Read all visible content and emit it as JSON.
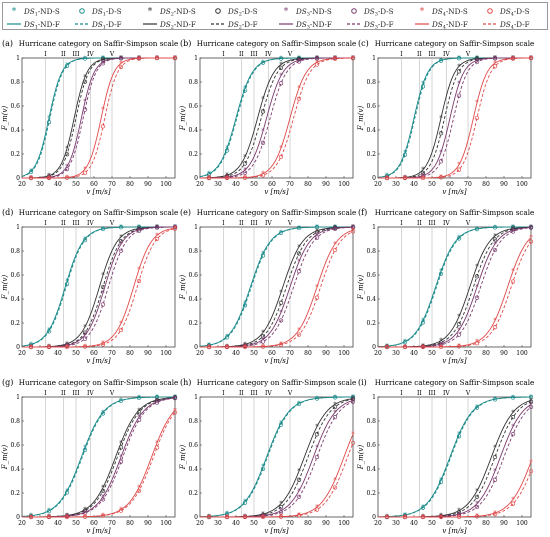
{
  "legend": {
    "rows": [
      [
        {
          "text": "DS1-ND-S",
          "sub": "1",
          "base": "DS",
          "rest": "-ND-S",
          "color": "#1a8a8a",
          "marker": "star",
          "style": "solid"
        },
        {
          "text": "DS1-D-S",
          "sub": "1",
          "base": "DS",
          "rest": "-D-S",
          "color": "#1a8a8a",
          "marker": "circle",
          "style": "dashed"
        },
        {
          "text": "DS2-ND-S",
          "sub": "2",
          "base": "DS",
          "rest": "-ND-S",
          "color": "#333333",
          "marker": "star",
          "style": "solid"
        },
        {
          "text": "DS2-D-S",
          "sub": "2",
          "base": "DS",
          "rest": "-D-S",
          "color": "#333333",
          "marker": "circle",
          "style": "dashed"
        },
        {
          "text": "DS3-ND-S",
          "sub": "3",
          "base": "DS",
          "rest": "-ND-S",
          "color": "#7a3b6e",
          "marker": "star",
          "style": "solid"
        },
        {
          "text": "DS3-D-S",
          "sub": "3",
          "base": "DS",
          "rest": "-D-S",
          "color": "#7a3b6e",
          "marker": "circle",
          "style": "dashed"
        },
        {
          "text": "DS4-ND-S",
          "sub": "4",
          "base": "DS",
          "rest": "-ND-S",
          "color": "#e04a4a",
          "marker": "star",
          "style": "solid"
        },
        {
          "text": "DS4-D-S",
          "sub": "4",
          "base": "DS",
          "rest": "-D-S",
          "color": "#e04a4a",
          "marker": "circle",
          "style": "dashed"
        }
      ],
      [
        {
          "text": "DS1-ND-F",
          "sub": "1",
          "base": "DS",
          "rest": "-ND-F",
          "color": "#1a8a8a",
          "marker": "line",
          "style": "solid"
        },
        {
          "text": "DS1-D-F",
          "sub": "1",
          "base": "DS",
          "rest": "-D-F",
          "color": "#1a8a8a",
          "marker": "line",
          "style": "dashed"
        },
        {
          "text": "DS2-ND-F",
          "sub": "2",
          "base": "DS",
          "rest": "-ND-F",
          "color": "#333333",
          "marker": "line",
          "style": "solid"
        },
        {
          "text": "DS2-D-F",
          "sub": "2",
          "base": "DS",
          "rest": "-D-F",
          "color": "#333333",
          "marker": "line",
          "style": "dashed"
        },
        {
          "text": "DS3-ND-F",
          "sub": "3",
          "base": "DS",
          "rest": "-ND-F",
          "color": "#7a3b6e",
          "marker": "line",
          "style": "solid"
        },
        {
          "text": "DS3-D-F",
          "sub": "3",
          "base": "DS",
          "rest": "-D-F",
          "color": "#7a3b6e",
          "marker": "line",
          "style": "dashed"
        },
        {
          "text": "DS4-ND-F",
          "sub": "4",
          "base": "DS",
          "rest": "-ND-F",
          "color": "#e04a4a",
          "marker": "line",
          "style": "solid"
        },
        {
          "text": "DS4-D-F",
          "sub": "4",
          "base": "DS",
          "rest": "-D-F",
          "color": "#e04a4a",
          "marker": "line",
          "style": "dashed"
        }
      ]
    ]
  },
  "chart_data": [
    {
      "panel": "(a)",
      "type": "line",
      "title": "Hurricane category on Saffir-Simpson scale",
      "xlabel": "v [m/s]",
      "ylabel": "F_m(v)",
      "xlim": [
        20,
        105
      ],
      "ylim": [
        0,
        1
      ],
      "xticks": [
        20,
        30,
        40,
        50,
        60,
        70,
        80,
        90,
        100
      ],
      "yticks": [
        0,
        0.2,
        0.4,
        0.6,
        0.8,
        1
      ],
      "category_lines": [
        {
          "label": "I",
          "v": 33
        },
        {
          "label": "II",
          "v": 43
        },
        {
          "label": "III",
          "v": 50
        },
        {
          "label": "IV",
          "v": 58
        },
        {
          "label": "V",
          "v": 70
        }
      ],
      "medians": {
        "DS1": [
          35,
          35.5
        ],
        "DS2": [
          49,
          50
        ],
        "DS3": [
          53,
          54
        ],
        "DS4": [
          64,
          66
        ]
      },
      "steepness": 0.28
    },
    {
      "panel": "(b)",
      "type": "line",
      "title": "Hurricane category on Saffir-Simpson scale",
      "xlabel": "v [m/s]",
      "ylabel": "F_m(v)",
      "xlim": [
        20,
        105
      ],
      "ylim": [
        0,
        1
      ],
      "xticks": [
        20,
        30,
        40,
        50,
        60,
        70,
        80,
        90,
        100
      ],
      "yticks": [
        0,
        0.2,
        0.4,
        0.6,
        0.8,
        1
      ],
      "category_lines": [
        {
          "label": "I",
          "v": 33
        },
        {
          "label": "II",
          "v": 43
        },
        {
          "label": "III",
          "v": 50
        },
        {
          "label": "IV",
          "v": 58
        },
        {
          "label": "V",
          "v": 70
        }
      ],
      "medians": {
        "DS1": [
          40,
          40.5
        ],
        "DS2": [
          52,
          54
        ],
        "DS3": [
          57,
          59
        ],
        "DS4": [
          70,
          72
        ]
      },
      "steepness": 0.22
    },
    {
      "panel": "(c)",
      "type": "line",
      "title": "Hurricane category on Saffir-Simpson scale",
      "xlabel": "v [m/s]",
      "ylabel": "F_m(v)",
      "xlim": [
        20,
        105
      ],
      "ylim": [
        0,
        1
      ],
      "xticks": [
        20,
        30,
        40,
        50,
        60,
        70,
        80,
        90,
        100
      ],
      "yticks": [
        0,
        0.2,
        0.4,
        0.6,
        0.8,
        1
      ],
      "category_lines": [
        {
          "label": "I",
          "v": 33
        },
        {
          "label": "II",
          "v": 43
        },
        {
          "label": "III",
          "v": 50
        },
        {
          "label": "IV",
          "v": 58
        },
        {
          "label": "V",
          "v": 70
        }
      ],
      "medians": {
        "DS1": [
          40,
          40.5
        ],
        "DS2": [
          55,
          57
        ],
        "DS3": [
          60,
          62
        ],
        "DS4": [
          73,
          75
        ]
      },
      "steepness": 0.26
    },
    {
      "panel": "(d)",
      "type": "line",
      "title": "Hurricane category on Saffir-Simpson scale",
      "xlabel": "v [m/s]",
      "ylabel": "F_m(v)",
      "xlim": [
        20,
        105
      ],
      "ylim": [
        0,
        1
      ],
      "xticks": [
        20,
        30,
        40,
        50,
        60,
        70,
        80,
        90,
        100
      ],
      "yticks": [
        0,
        0.2,
        0.4,
        0.6,
        0.8,
        1
      ],
      "category_lines": [
        {
          "label": "I",
          "v": 33
        },
        {
          "label": "II",
          "v": 43
        },
        {
          "label": "III",
          "v": 50
        },
        {
          "label": "IV",
          "v": 58
        },
        {
          "label": "V",
          "v": 70
        }
      ],
      "medians": {
        "DS1": [
          44,
          44.5
        ],
        "DS2": [
          63,
          65
        ],
        "DS3": [
          66,
          68
        ],
        "DS4": [
          82,
          84
        ]
      },
      "steepness": 0.2
    },
    {
      "panel": "(e)",
      "type": "line",
      "title": "Hurricane category on Saffir-Simpson scale",
      "xlabel": "v [m/s]",
      "ylabel": "F_m(v)",
      "xlim": [
        20,
        105
      ],
      "ylim": [
        0,
        1
      ],
      "xticks": [
        20,
        30,
        40,
        50,
        60,
        70,
        80,
        90,
        100
      ],
      "yticks": [
        0,
        0.2,
        0.4,
        0.6,
        0.8,
        1
      ],
      "category_lines": [
        {
          "label": "I",
          "v": 33
        },
        {
          "label": "II",
          "v": 43
        },
        {
          "label": "III",
          "v": 50
        },
        {
          "label": "IV",
          "v": 58
        },
        {
          "label": "V",
          "v": 70
        }
      ],
      "medians": {
        "DS1": [
          48,
          48.5
        ],
        "DS2": [
          66,
          68
        ],
        "DS3": [
          70,
          72
        ],
        "DS4": [
          85,
          87
        ]
      },
      "steepness": 0.18
    },
    {
      "panel": "(f)",
      "type": "line",
      "title": "Hurricane category on Saffir-Simpson scale",
      "xlabel": "v [m/s]",
      "ylabel": "F_m(v)",
      "xlim": [
        20,
        105
      ],
      "ylim": [
        0,
        1
      ],
      "xticks": [
        20,
        30,
        40,
        50,
        60,
        70,
        80,
        90,
        100
      ],
      "yticks": [
        0,
        0.2,
        0.4,
        0.6,
        0.8,
        1
      ],
      "category_lines": [
        {
          "label": "I",
          "v": 33
        },
        {
          "label": "II",
          "v": 43
        },
        {
          "label": "III",
          "v": 50
        },
        {
          "label": "IV",
          "v": 58
        },
        {
          "label": "V",
          "v": 70
        }
      ],
      "medians": {
        "DS1": [
          52,
          52.5
        ],
        "DS2": [
          71,
          73
        ],
        "DS3": [
          75,
          77
        ],
        "DS4": [
          92,
          94
        ]
      },
      "steepness": 0.18
    },
    {
      "panel": "(g)",
      "type": "line",
      "title": "Hurricane category on Saffir-Simpson scale",
      "xlabel": "v [m/s]",
      "ylabel": "F_m(v)",
      "xlim": [
        20,
        105
      ],
      "ylim": [
        0,
        1
      ],
      "xticks": [
        20,
        30,
        40,
        50,
        60,
        70,
        80,
        90,
        100
      ],
      "yticks": [
        0,
        0.2,
        0.4,
        0.6,
        0.8,
        1
      ],
      "category_lines": [
        {
          "label": "I",
          "v": 33
        },
        {
          "label": "II",
          "v": 43
        },
        {
          "label": "III",
          "v": 50
        },
        {
          "label": "IV",
          "v": 58
        },
        {
          "label": "V",
          "v": 70
        }
      ],
      "medians": {
        "DS1": [
          53,
          53.5
        ],
        "DS2": [
          72,
          73
        ],
        "DS3": [
          75,
          76
        ],
        "DS4": [
          92,
          93
        ]
      },
      "steepness": 0.16
    },
    {
      "panel": "(h)",
      "type": "line",
      "title": "Hurricane category on Saffir-Simpson scale",
      "xlabel": "v [m/s]",
      "ylabel": "F_m(v)",
      "xlim": [
        20,
        105
      ],
      "ylim": [
        0,
        1
      ],
      "xticks": [
        20,
        30,
        40,
        50,
        60,
        70,
        80,
        90,
        100
      ],
      "yticks": [
        0,
        0.2,
        0.4,
        0.6,
        0.8,
        1
      ],
      "category_lines": [
        {
          "label": "I",
          "v": 33
        },
        {
          "label": "II",
          "v": 43
        },
        {
          "label": "III",
          "v": 50
        },
        {
          "label": "IV",
          "v": 58
        },
        {
          "label": "V",
          "v": 70
        }
      ],
      "medians": {
        "DS1": [
          57,
          57.5
        ],
        "DS2": [
          78,
          80
        ],
        "DS3": [
          83,
          85
        ],
        "DS4": [
          100,
          102
        ]
      },
      "steepness": 0.16
    },
    {
      "panel": "(i)",
      "type": "line",
      "title": "Hurricane category on Saffir-Simpson scale",
      "xlabel": "v [m/s]",
      "ylabel": "F_m(v)",
      "xlim": [
        20,
        105
      ],
      "ylim": [
        0,
        1
      ],
      "xticks": [
        20,
        30,
        40,
        50,
        60,
        70,
        80,
        90,
        100
      ],
      "yticks": [
        0,
        0.2,
        0.4,
        0.6,
        0.8,
        1
      ],
      "category_lines": [
        {
          "label": "I",
          "v": 33
        },
        {
          "label": "II",
          "v": 43
        },
        {
          "label": "III",
          "v": 50
        },
        {
          "label": "IV",
          "v": 58
        },
        {
          "label": "V",
          "v": 70
        }
      ],
      "medians": {
        "DS1": [
          60,
          60.5
        ],
        "DS2": [
          83,
          85
        ],
        "DS3": [
          88,
          90
        ],
        "DS4": [
          106,
          108
        ]
      },
      "steepness": 0.16
    }
  ]
}
